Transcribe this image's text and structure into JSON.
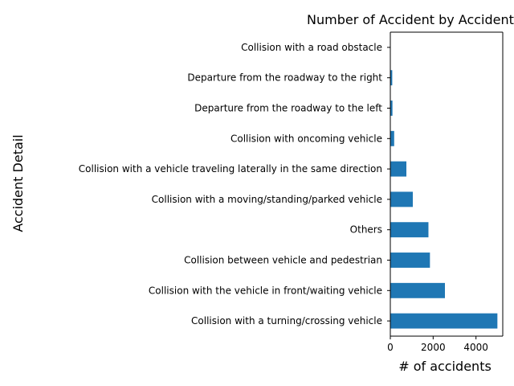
{
  "chart_data": {
    "type": "bar",
    "orientation": "horizontal",
    "title": "Number of Accident by Accident Detail",
    "xlabel": "# of accidents",
    "ylabel": "Accident Detail",
    "xlim": [
      0,
      5250
    ],
    "xticks": [
      0,
      2000,
      4000
    ],
    "grid": false,
    "legend": "none",
    "bar_color": "#1f77b4",
    "categories": [
      "Collision with a road obstacle",
      "Departure from the roadway to the right",
      "Departure from the roadway to the left",
      "Collision with oncoming vehicle",
      "Collision with a vehicle traveling laterally in the same direction",
      "Collision with a moving/standing/parked vehicle",
      "Others",
      "Collision between vehicle and pedestrian",
      "Collision with the vehicle in front/waiting vehicle",
      "Collision with a turning/crossing vehicle"
    ],
    "values": [
      10,
      90,
      100,
      180,
      750,
      1050,
      1780,
      1850,
      2550,
      5000
    ]
  }
}
